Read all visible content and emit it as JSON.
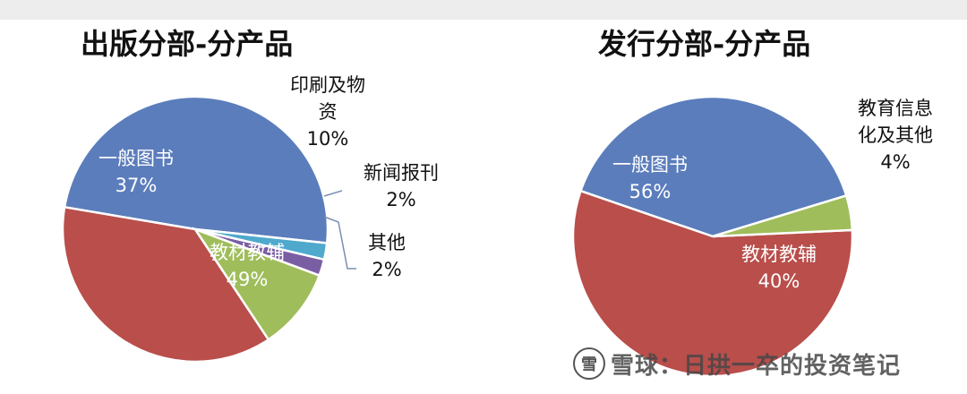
{
  "chart_data": [
    {
      "type": "pie",
      "title": "出版分部-分产品",
      "slices": [
        {
          "name": "教材教辅",
          "value": 49,
          "label": "49%",
          "color": "#5b7dbc"
        },
        {
          "name": "一般图书",
          "value": 37,
          "label": "37%",
          "color": "#b94e4b"
        },
        {
          "name": "印刷及物资",
          "name_lines": [
            "印刷及物",
            "资"
          ],
          "value": 10,
          "label": "10%",
          "color": "#9fbd5a"
        },
        {
          "name": "新闻报刊",
          "value": 2,
          "label": "2%",
          "color": "#7a5ea3"
        },
        {
          "name": "其他",
          "value": 2,
          "label": "2%",
          "color": "#4fa9cc"
        }
      ]
    },
    {
      "type": "pie",
      "title": "发行分部-分产品",
      "slices": [
        {
          "name": "教材教辅",
          "value": 40,
          "label": "40%",
          "color": "#5b7dbc"
        },
        {
          "name": "一般图书",
          "value": 56,
          "label": "56%",
          "color": "#b94e4b"
        },
        {
          "name": "教育信息化及其他",
          "name_lines": [
            "教育信息",
            "化及其他"
          ],
          "value": 4,
          "label": "4%",
          "color": "#9fbd5a"
        }
      ]
    }
  ],
  "watermark": {
    "logo": "雪",
    "text": "雪球：日拱一卒的投资笔记"
  }
}
